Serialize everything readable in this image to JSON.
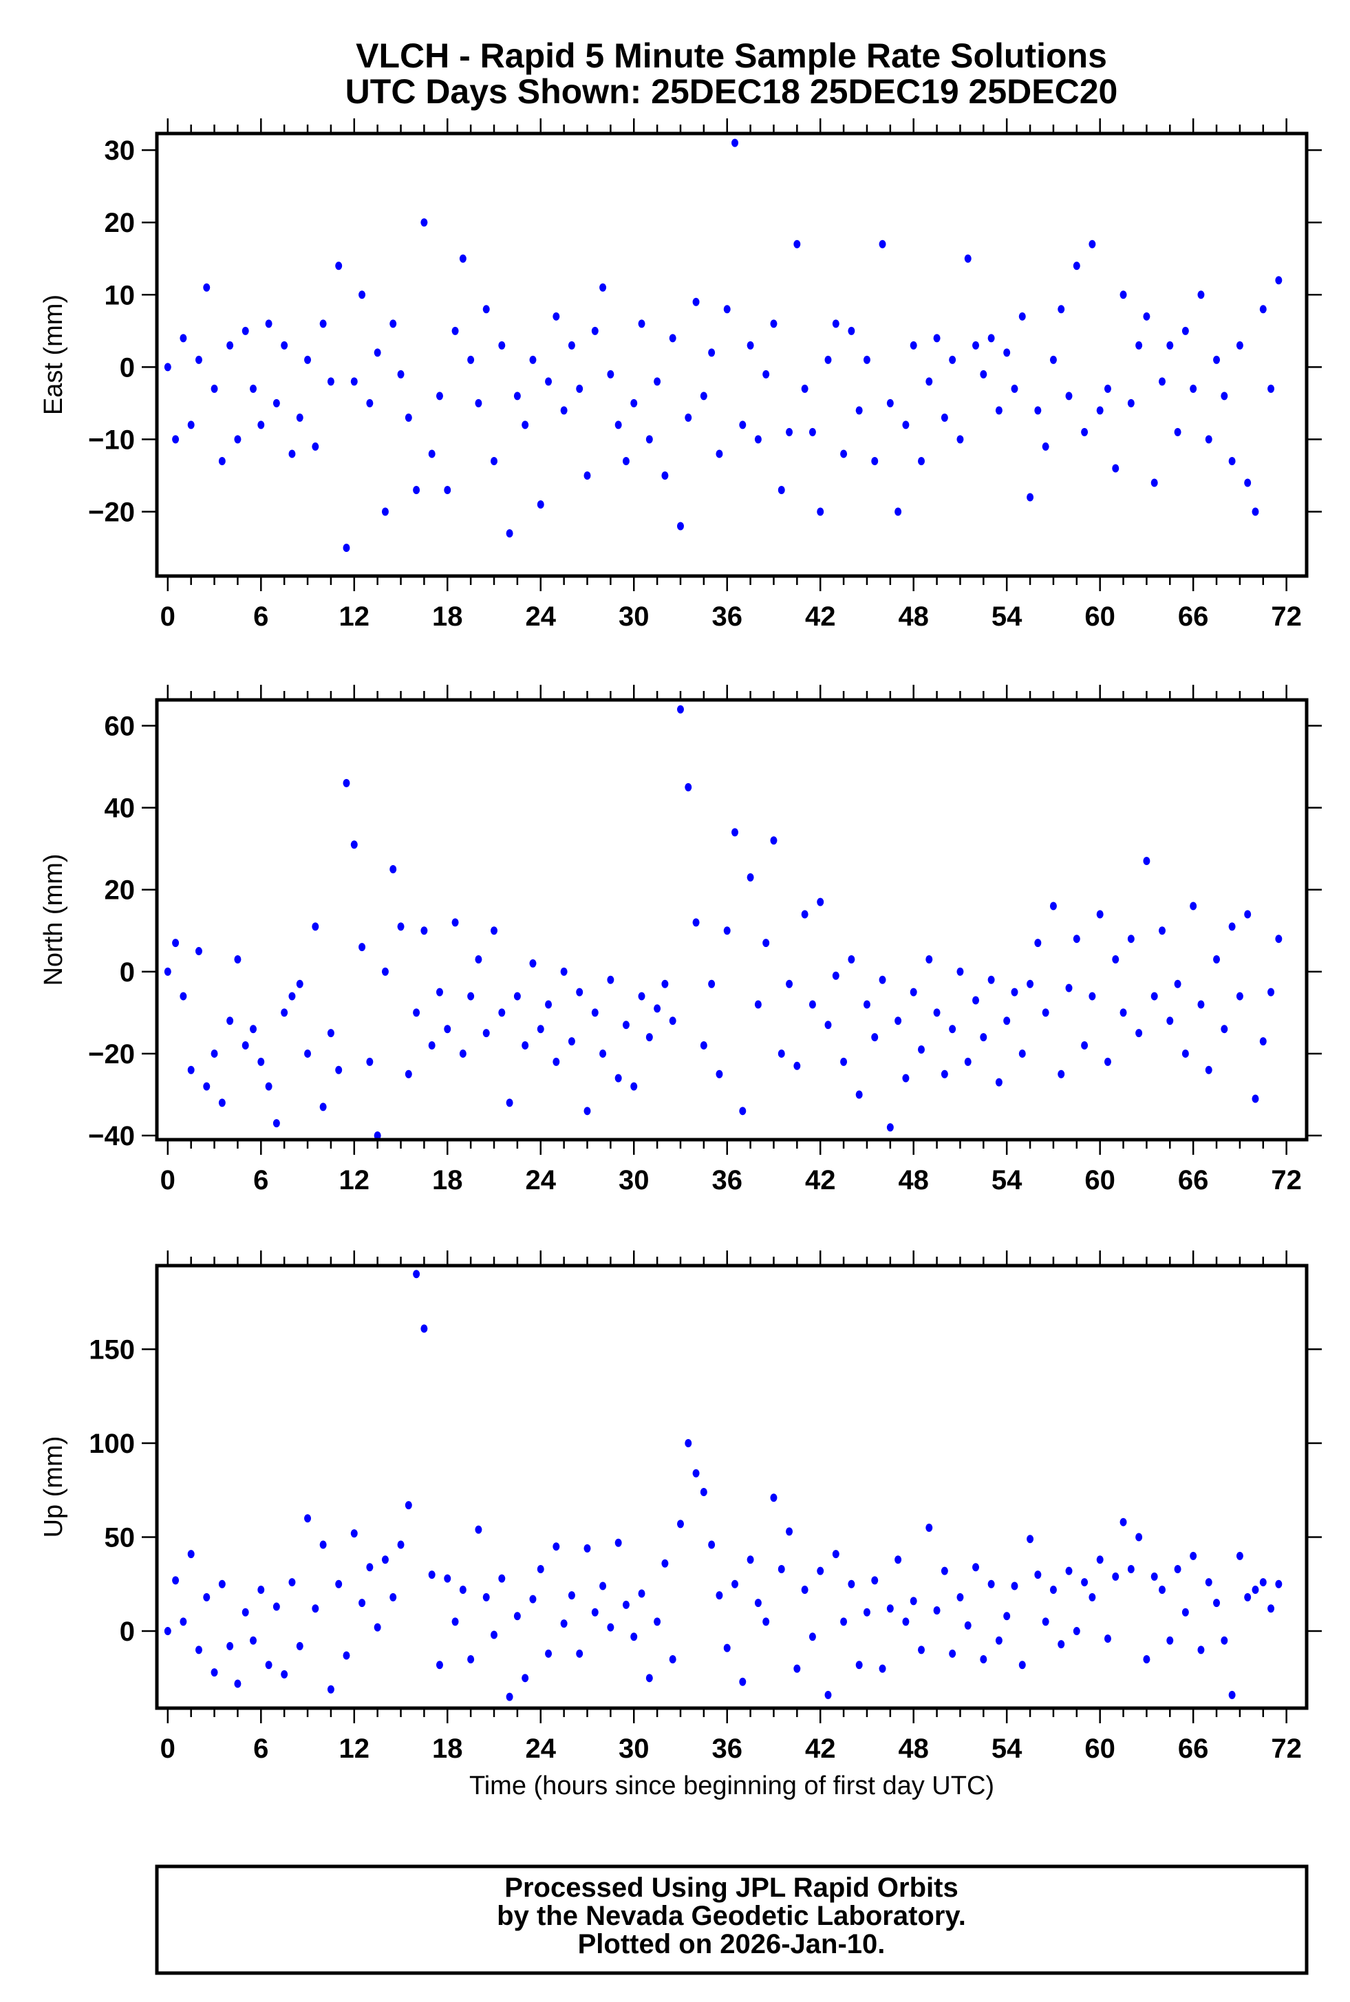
{
  "title_line1": "VLCH - Rapid 5 Minute Sample Rate Solutions",
  "title_line2": "UTC Days Shown:  25DEC18 25DEC19 25DEC20",
  "footer": {
    "line1": "Processed Using JPL Rapid Orbits",
    "line2": "by the Nevada Geodetic Laboratory.",
    "line3": "Plotted on 2026-Jan-10."
  },
  "chart_data": [
    {
      "type": "scatter",
      "ylabel": "East (mm)",
      "xlabel": "",
      "color": "#0000ff",
      "xlim": [
        -0.7,
        73.3
      ],
      "ylim": [
        -28.9,
        32.3
      ],
      "xticks": [
        0,
        6,
        12,
        18,
        24,
        30,
        36,
        42,
        48,
        54,
        60,
        66,
        72
      ],
      "yticks": [
        -20,
        -10,
        0,
        10,
        20,
        30
      ],
      "x_start": 0,
      "x_step": 0.5,
      "values": [
        0,
        -10,
        4,
        -8,
        1,
        11,
        -3,
        -13,
        3,
        -10,
        5,
        -3,
        -8,
        6,
        -5,
        3,
        -12,
        -7,
        1,
        -11,
        6,
        -2,
        14,
        -25,
        -2,
        10,
        -5,
        2,
        -20,
        6,
        -1,
        -7,
        -17,
        20,
        -12,
        -4,
        -17,
        5,
        15,
        1,
        -5,
        8,
        -13,
        3,
        -23,
        -4,
        -8,
        1,
        -19,
        -2,
        7,
        -6,
        3,
        -3,
        -15,
        5,
        11,
        -1,
        -8,
        -13,
        -5,
        6,
        -10,
        -2,
        -15,
        4,
        -22,
        -7,
        9,
        -4,
        2,
        -12,
        8,
        31,
        -8,
        3,
        -10,
        -1,
        6,
        -17,
        -9,
        17,
        -3,
        -9,
        -20,
        1,
        6,
        -12,
        5,
        -6,
        1,
        -13,
        17,
        -5,
        -20,
        -8,
        3,
        -13,
        -2,
        4,
        -7,
        1,
        -10,
        15,
        3,
        -1,
        4,
        -6,
        2,
        -3,
        7,
        -18,
        -6,
        -11,
        1,
        8,
        -4,
        14,
        -9,
        17,
        -6,
        -3,
        -14,
        10,
        -5,
        3,
        7,
        -16,
        -2,
        3,
        -9,
        5,
        -3,
        10,
        -10,
        1,
        -4,
        -13,
        3,
        -16,
        -20,
        8,
        -3,
        12
      ]
    },
    {
      "type": "scatter",
      "ylabel": "North (mm)",
      "xlabel": "",
      "color": "#0000ff",
      "xlim": [
        -0.7,
        73.3
      ],
      "ylim": [
        -41,
        66.3
      ],
      "xticks": [
        0,
        6,
        12,
        18,
        24,
        30,
        36,
        42,
        48,
        54,
        60,
        66,
        72
      ],
      "yticks": [
        -40,
        -20,
        0,
        20,
        40,
        60
      ],
      "x_start": 0,
      "x_step": 0.5,
      "values": [
        0,
        7,
        -6,
        -24,
        5,
        -28,
        -20,
        -32,
        -12,
        3,
        -18,
        -14,
        -22,
        -28,
        -37,
        -10,
        -6,
        -3,
        -20,
        11,
        -33,
        -15,
        -24,
        46,
        31,
        6,
        -22,
        -40,
        0,
        25,
        11,
        -25,
        -10,
        10,
        -18,
        -5,
        -14,
        12,
        -20,
        -6,
        3,
        -15,
        10,
        -10,
        -32,
        -6,
        -18,
        2,
        -14,
        -8,
        -22,
        0,
        -17,
        -5,
        -34,
        -10,
        -20,
        -2,
        -26,
        -13,
        -28,
        -6,
        -16,
        -9,
        -3,
        -12,
        64,
        45,
        12,
        -18,
        -3,
        -25,
        10,
        34,
        -34,
        23,
        -8,
        7,
        32,
        -20,
        -3,
        -23,
        14,
        -8,
        17,
        -13,
        -1,
        -22,
        3,
        -30,
        -8,
        -16,
        -2,
        -38,
        -12,
        -26,
        -5,
        -19,
        3,
        -10,
        -25,
        -14,
        0,
        -22,
        -7,
        -16,
        -2,
        -27,
        -12,
        -5,
        -20,
        -3,
        7,
        -10,
        16,
        -25,
        -4,
        8,
        -18,
        -6,
        14,
        -22,
        3,
        -10,
        8,
        -15,
        27,
        -6,
        10,
        -12,
        -3,
        -20,
        16,
        -8,
        -24,
        3,
        -14,
        11,
        -6,
        14,
        -31,
        -17,
        -5,
        8
      ]
    },
    {
      "type": "scatter",
      "ylabel": "Up (mm)",
      "xlabel": "Time (hours since beginning of first day UTC)",
      "color": "#0000ff",
      "xlim": [
        -0.7,
        73.3
      ],
      "ylim": [
        -41,
        194.5
      ],
      "xticks": [
        0,
        6,
        12,
        18,
        24,
        30,
        36,
        42,
        48,
        54,
        60,
        66,
        72
      ],
      "yticks": [
        0,
        50,
        100,
        150
      ],
      "x_start": 0,
      "x_step": 0.5,
      "values": [
        0,
        27,
        5,
        41,
        -10,
        18,
        -22,
        25,
        -8,
        -28,
        10,
        -5,
        22,
        -18,
        13,
        -23,
        26,
        -8,
        60,
        12,
        46,
        -31,
        25,
        -13,
        52,
        15,
        34,
        2,
        38,
        18,
        46,
        67,
        190,
        161,
        30,
        -18,
        28,
        5,
        22,
        -15,
        54,
        18,
        -2,
        28,
        -35,
        8,
        -25,
        17,
        33,
        -12,
        45,
        4,
        19,
        -12,
        44,
        10,
        24,
        2,
        47,
        14,
        -3,
        20,
        -25,
        5,
        36,
        -15,
        57,
        100,
        84,
        74,
        46,
        19,
        -9,
        25,
        -27,
        38,
        15,
        5,
        71,
        33,
        53,
        -20,
        22,
        -3,
        32,
        -34,
        41,
        5,
        25,
        -18,
        10,
        27,
        -20,
        12,
        38,
        5,
        16,
        -10,
        55,
        11,
        32,
        -12,
        18,
        3,
        34,
        -15,
        25,
        -5,
        8,
        24,
        -18,
        49,
        30,
        5,
        22,
        -7,
        32,
        0,
        26,
        18,
        38,
        -4,
        29,
        58,
        33,
        50,
        -15,
        29,
        22,
        -5,
        33,
        10,
        40,
        -10,
        26,
        15,
        -5,
        -34,
        40,
        18,
        22,
        26,
        12,
        25
      ]
    }
  ]
}
